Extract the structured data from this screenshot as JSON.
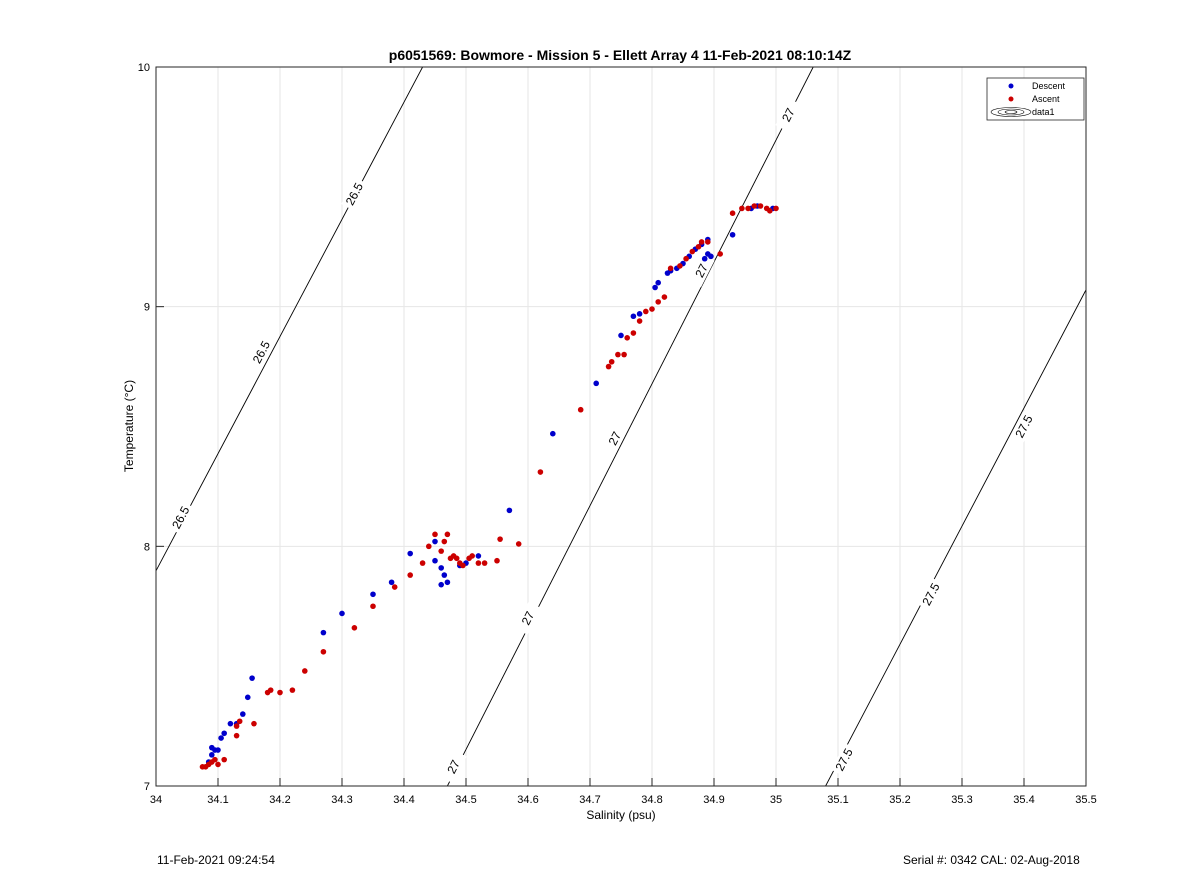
{
  "chart_data": {
    "type": "scatter",
    "title": "p6051569: Bowmore - Mission 5 - Ellett Array 4 11-Feb-2021 08:10:14Z",
    "xlabel": "Salinity (psu)",
    "ylabel": "Temperature (°C)",
    "xlim": [
      34,
      35.5
    ],
    "ylim": [
      7,
      10
    ],
    "xticks": [
      "34",
      "34.1",
      "34.2",
      "34.3",
      "34.4",
      "34.5",
      "34.6",
      "34.7",
      "34.8",
      "34.9",
      "35",
      "35.1",
      "35.2",
      "35.3",
      "35.4",
      "35.5"
    ],
    "yticks": [
      "7",
      "8",
      "9",
      "10"
    ],
    "grid": true,
    "legend_position": "top-right",
    "legend": [
      "Descent",
      "Ascent",
      "data1"
    ],
    "colors": {
      "descent": "#0000cc",
      "ascent": "#cc0000",
      "contour": "#000000"
    },
    "series": [
      {
        "name": "Descent",
        "points": [
          [
            34.085,
            7.1
          ],
          [
            34.09,
            7.13
          ],
          [
            34.095,
            7.15
          ],
          [
            34.09,
            7.16
          ],
          [
            34.1,
            7.15
          ],
          [
            34.105,
            7.2
          ],
          [
            34.11,
            7.22
          ],
          [
            34.12,
            7.26
          ],
          [
            34.13,
            7.26
          ],
          [
            34.14,
            7.3
          ],
          [
            34.148,
            7.37
          ],
          [
            34.155,
            7.45
          ],
          [
            34.27,
            7.64
          ],
          [
            34.3,
            7.72
          ],
          [
            34.35,
            7.8
          ],
          [
            34.38,
            7.85
          ],
          [
            34.41,
            7.97
          ],
          [
            34.45,
            8.02
          ],
          [
            34.45,
            7.94
          ],
          [
            34.46,
            7.91
          ],
          [
            34.465,
            7.88
          ],
          [
            34.46,
            7.84
          ],
          [
            34.47,
            7.85
          ],
          [
            34.49,
            7.92
          ],
          [
            34.5,
            7.93
          ],
          [
            34.52,
            7.96
          ],
          [
            34.57,
            8.15
          ],
          [
            34.64,
            8.47
          ],
          [
            34.71,
            8.68
          ],
          [
            34.75,
            8.88
          ],
          [
            34.77,
            8.96
          ],
          [
            34.78,
            8.97
          ],
          [
            34.805,
            9.08
          ],
          [
            34.81,
            9.1
          ],
          [
            34.825,
            9.14
          ],
          [
            34.83,
            9.15
          ],
          [
            34.84,
            9.16
          ],
          [
            34.85,
            9.18
          ],
          [
            34.86,
            9.21
          ],
          [
            34.87,
            9.24
          ],
          [
            34.88,
            9.26
          ],
          [
            34.89,
            9.28
          ],
          [
            34.89,
            9.22
          ],
          [
            34.885,
            9.2
          ],
          [
            34.895,
            9.21
          ],
          [
            34.93,
            9.3
          ],
          [
            34.96,
            9.41
          ],
          [
            34.97,
            9.42
          ],
          [
            34.995,
            9.41
          ]
        ]
      },
      {
        "name": "Ascent",
        "points": [
          [
            34.075,
            7.08
          ],
          [
            34.08,
            7.08
          ],
          [
            34.085,
            7.09
          ],
          [
            34.09,
            7.1
          ],
          [
            34.095,
            7.11
          ],
          [
            34.1,
            7.09
          ],
          [
            34.11,
            7.11
          ],
          [
            34.13,
            7.21
          ],
          [
            34.13,
            7.25
          ],
          [
            34.135,
            7.27
          ],
          [
            34.158,
            7.26
          ],
          [
            34.18,
            7.39
          ],
          [
            34.185,
            7.4
          ],
          [
            34.2,
            7.39
          ],
          [
            34.22,
            7.4
          ],
          [
            34.24,
            7.48
          ],
          [
            34.27,
            7.56
          ],
          [
            34.32,
            7.66
          ],
          [
            34.35,
            7.75
          ],
          [
            34.385,
            7.83
          ],
          [
            34.41,
            7.88
          ],
          [
            34.43,
            7.93
          ],
          [
            34.44,
            8.0
          ],
          [
            34.45,
            8.05
          ],
          [
            34.46,
            7.98
          ],
          [
            34.465,
            8.02
          ],
          [
            34.47,
            8.05
          ],
          [
            34.475,
            7.95
          ],
          [
            34.48,
            7.96
          ],
          [
            34.485,
            7.95
          ],
          [
            34.49,
            7.93
          ],
          [
            34.495,
            7.92
          ],
          [
            34.505,
            7.95
          ],
          [
            34.51,
            7.96
          ],
          [
            34.52,
            7.93
          ],
          [
            34.53,
            7.93
          ],
          [
            34.55,
            7.94
          ],
          [
            34.555,
            8.03
          ],
          [
            34.585,
            8.01
          ],
          [
            34.62,
            8.31
          ],
          [
            34.685,
            8.57
          ],
          [
            34.73,
            8.75
          ],
          [
            34.735,
            8.77
          ],
          [
            34.745,
            8.8
          ],
          [
            34.755,
            8.8
          ],
          [
            34.76,
            8.87
          ],
          [
            34.77,
            8.89
          ],
          [
            34.78,
            8.94
          ],
          [
            34.79,
            8.98
          ],
          [
            34.8,
            8.99
          ],
          [
            34.81,
            9.02
          ],
          [
            34.82,
            9.04
          ],
          [
            34.83,
            9.16
          ],
          [
            34.845,
            9.17
          ],
          [
            34.855,
            9.2
          ],
          [
            34.865,
            9.23
          ],
          [
            34.875,
            9.25
          ],
          [
            34.88,
            9.27
          ],
          [
            34.89,
            9.27
          ],
          [
            34.91,
            9.22
          ],
          [
            34.93,
            9.39
          ],
          [
            34.945,
            9.41
          ],
          [
            34.955,
            9.41
          ],
          [
            34.965,
            9.42
          ],
          [
            34.975,
            9.42
          ],
          [
            34.985,
            9.41
          ],
          [
            34.99,
            9.4
          ],
          [
            35.0,
            9.41
          ]
        ]
      }
    ],
    "contours": [
      {
        "level": "26.5",
        "line": [
          [
            33.98,
            7.8
          ],
          [
            34.43,
            10.0
          ]
        ],
        "labels": [
          {
            "text": "26.5",
            "at": [
              34.04,
              8.12
            ]
          },
          {
            "text": "26.5",
            "at": [
              34.17,
              8.81
            ]
          },
          {
            "text": "26.5",
            "at": [
              34.32,
              9.47
            ]
          }
        ]
      },
      {
        "level": "27",
        "line": [
          [
            34.47,
            7.0
          ],
          [
            35.06,
            10.0
          ]
        ],
        "labels": [
          {
            "text": "27",
            "at": [
              34.48,
              7.08
            ]
          },
          {
            "text": "27",
            "at": [
              34.6,
              7.7
            ]
          },
          {
            "text": "27",
            "at": [
              34.74,
              8.45
            ]
          },
          {
            "text": "27",
            "at": [
              34.88,
              9.15
            ]
          },
          {
            "text": "27",
            "at": [
              35.02,
              9.8
            ]
          }
        ]
      },
      {
        "level": "27.5",
        "line": [
          [
            35.08,
            7.0
          ],
          [
            35.5,
            9.07
          ]
        ],
        "labels": [
          {
            "text": "27.5",
            "at": [
              35.11,
              7.11
            ]
          },
          {
            "text": "27.5",
            "at": [
              35.25,
              7.8
            ]
          },
          {
            "text": "27.5",
            "at": [
              35.4,
              8.5
            ]
          }
        ]
      }
    ]
  },
  "footer": {
    "timestamp": "11-Feb-2021 09:24:54",
    "serial": "Serial #: 0342  CAL: 02-Aug-2018"
  }
}
